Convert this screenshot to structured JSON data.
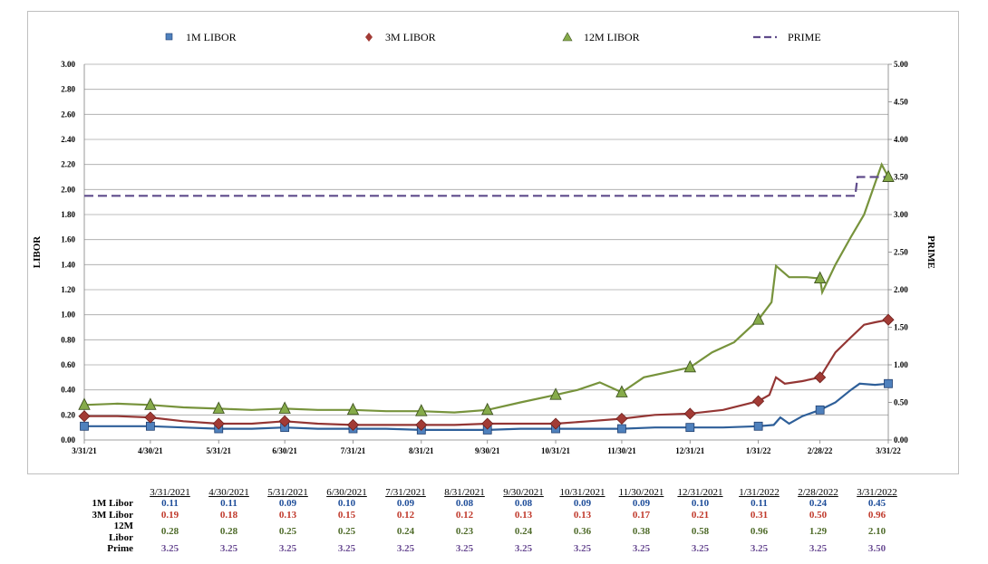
{
  "chart_data": {
    "type": "line",
    "y_left": {
      "label": "LIBOR",
      "ticks": [
        "0.00",
        "0.20",
        "0.40",
        "0.60",
        "0.80",
        "1.00",
        "1.20",
        "1.40",
        "1.60",
        "1.80",
        "2.00",
        "2.20",
        "2.40",
        "2.60",
        "2.80",
        "3.00"
      ],
      "range": [
        0,
        3
      ]
    },
    "y_right": {
      "label": "PRIME",
      "ticks": [
        "0.00",
        "0.50",
        "1.00",
        "1.50",
        "2.00",
        "2.50",
        "3.00",
        "3.50",
        "4.00",
        "4.50",
        "5.00"
      ],
      "range": [
        0,
        5
      ]
    },
    "x_ticks": [
      "3/31/21",
      "4/30/21",
      "5/31/21",
      "6/30/21",
      "7/31/21",
      "8/31/21",
      "9/30/21",
      "10/31/21",
      "11/30/21",
      "12/31/21",
      "1/31/22",
      "2/28/22",
      "3/31/22"
    ],
    "x_range": [
      "2021-03-31",
      "2022-03-31"
    ],
    "legend": {
      "placement": "top"
    },
    "series": [
      {
        "name": "1M LIBOR",
        "axis": "left",
        "color": "#4f81bd",
        "line_color": "#2e5f99",
        "marker": "square",
        "values": [
          [
            "2021-03-31",
            0.11
          ],
          [
            "2021-04-15",
            0.11
          ],
          [
            "2021-04-30",
            0.11
          ],
          [
            "2021-05-15",
            0.1
          ],
          [
            "2021-05-31",
            0.09
          ],
          [
            "2021-06-15",
            0.09
          ],
          [
            "2021-06-30",
            0.1
          ],
          [
            "2021-07-15",
            0.09
          ],
          [
            "2021-07-31",
            0.09
          ],
          [
            "2021-08-15",
            0.09
          ],
          [
            "2021-08-31",
            0.08
          ],
          [
            "2021-09-15",
            0.08
          ],
          [
            "2021-09-30",
            0.08
          ],
          [
            "2021-10-15",
            0.09
          ],
          [
            "2021-10-31",
            0.09
          ],
          [
            "2021-11-15",
            0.09
          ],
          [
            "2021-11-30",
            0.09
          ],
          [
            "2021-12-15",
            0.1
          ],
          [
            "2021-12-31",
            0.1
          ],
          [
            "2022-01-15",
            0.1
          ],
          [
            "2022-01-31",
            0.11
          ],
          [
            "2022-02-07",
            0.12
          ],
          [
            "2022-02-10",
            0.18
          ],
          [
            "2022-02-14",
            0.13
          ],
          [
            "2022-02-20",
            0.19
          ],
          [
            "2022-02-28",
            0.24
          ],
          [
            "2022-03-07",
            0.3
          ],
          [
            "2022-03-14",
            0.4
          ],
          [
            "2022-03-18",
            0.45
          ],
          [
            "2022-03-25",
            0.44
          ],
          [
            "2022-03-31",
            0.45
          ]
        ]
      },
      {
        "name": "3M LIBOR",
        "axis": "left",
        "color": "#c0504d",
        "line_color": "#943634",
        "marker": "diamond",
        "values": [
          [
            "2021-03-31",
            0.19
          ],
          [
            "2021-04-15",
            0.19
          ],
          [
            "2021-04-30",
            0.18
          ],
          [
            "2021-05-15",
            0.15
          ],
          [
            "2021-05-31",
            0.13
          ],
          [
            "2021-06-15",
            0.13
          ],
          [
            "2021-06-30",
            0.15
          ],
          [
            "2021-07-15",
            0.13
          ],
          [
            "2021-07-31",
            0.12
          ],
          [
            "2021-08-15",
            0.12
          ],
          [
            "2021-08-31",
            0.12
          ],
          [
            "2021-09-15",
            0.12
          ],
          [
            "2021-09-30",
            0.13
          ],
          [
            "2021-10-15",
            0.13
          ],
          [
            "2021-10-31",
            0.13
          ],
          [
            "2021-11-15",
            0.15
          ],
          [
            "2021-11-30",
            0.17
          ],
          [
            "2021-12-15",
            0.2
          ],
          [
            "2021-12-31",
            0.21
          ],
          [
            "2022-01-15",
            0.24
          ],
          [
            "2022-01-31",
            0.31
          ],
          [
            "2022-02-05",
            0.36
          ],
          [
            "2022-02-08",
            0.5
          ],
          [
            "2022-02-12",
            0.45
          ],
          [
            "2022-02-20",
            0.47
          ],
          [
            "2022-02-28",
            0.5
          ],
          [
            "2022-03-07",
            0.7
          ],
          [
            "2022-03-14",
            0.82
          ],
          [
            "2022-03-20",
            0.92
          ],
          [
            "2022-03-25",
            0.94
          ],
          [
            "2022-03-31",
            0.96
          ]
        ]
      },
      {
        "name": "12M LIBOR",
        "axis": "left",
        "color": "#9bbb59",
        "line_color": "#77933c",
        "marker": "triangle",
        "values": [
          [
            "2021-03-31",
            0.28
          ],
          [
            "2021-04-15",
            0.29
          ],
          [
            "2021-04-30",
            0.28
          ],
          [
            "2021-05-15",
            0.26
          ],
          [
            "2021-05-31",
            0.25
          ],
          [
            "2021-06-15",
            0.24
          ],
          [
            "2021-06-30",
            0.25
          ],
          [
            "2021-07-15",
            0.24
          ],
          [
            "2021-07-31",
            0.24
          ],
          [
            "2021-08-15",
            0.23
          ],
          [
            "2021-08-31",
            0.23
          ],
          [
            "2021-09-15",
            0.22
          ],
          [
            "2021-09-30",
            0.24
          ],
          [
            "2021-10-15",
            0.3
          ],
          [
            "2021-10-31",
            0.36
          ],
          [
            "2021-11-10",
            0.4
          ],
          [
            "2021-11-20",
            0.46
          ],
          [
            "2021-11-30",
            0.38
          ],
          [
            "2021-12-10",
            0.5
          ],
          [
            "2021-12-31",
            0.58
          ],
          [
            "2022-01-10",
            0.7
          ],
          [
            "2022-01-20",
            0.78
          ],
          [
            "2022-01-31",
            0.96
          ],
          [
            "2022-02-06",
            1.1
          ],
          [
            "2022-02-08",
            1.39
          ],
          [
            "2022-02-14",
            1.3
          ],
          [
            "2022-02-22",
            1.3
          ],
          [
            "2022-02-28",
            1.29
          ],
          [
            "2022-03-01",
            1.18
          ],
          [
            "2022-03-07",
            1.4
          ],
          [
            "2022-03-14",
            1.62
          ],
          [
            "2022-03-20",
            1.8
          ],
          [
            "2022-03-25",
            2.05
          ],
          [
            "2022-03-28",
            2.2
          ],
          [
            "2022-03-31",
            2.1
          ]
        ]
      },
      {
        "name": "PRIME",
        "axis": "right",
        "color": "#5f4b8b",
        "line_color": "#5f4b8b",
        "marker": "none",
        "dashed": true,
        "values": [
          [
            "2021-03-31",
            3.25
          ],
          [
            "2022-03-16",
            3.25
          ],
          [
            "2022-03-17",
            3.5
          ],
          [
            "2022-03-31",
            3.5
          ]
        ]
      }
    ]
  },
  "table": {
    "headers": [
      "3/31/2021",
      "4/30/2021",
      "5/31/2021",
      "6/30/2021",
      "7/31/2021",
      "8/31/2021",
      "9/30/2021",
      "10/31/2021",
      "11/30/2021",
      "12/31/2021",
      "1/31/2022",
      "2/28/2022",
      "3/31/2022"
    ],
    "rows": [
      {
        "label": "1M Libor",
        "color": "#1f4e9a",
        "values": [
          "0.11",
          "0.11",
          "0.09",
          "0.10",
          "0.09",
          "0.08",
          "0.08",
          "0.09",
          "0.09",
          "0.10",
          "0.11",
          "0.24",
          "0.45"
        ]
      },
      {
        "label": "3M Libor",
        "color": "#c0392b",
        "values": [
          "0.19",
          "0.18",
          "0.13",
          "0.15",
          "0.12",
          "0.12",
          "0.13",
          "0.13",
          "0.17",
          "0.21",
          "0.31",
          "0.50",
          "0.96"
        ]
      },
      {
        "label": "12M Libor",
        "color": "#4f6b2a",
        "values": [
          "0.28",
          "0.28",
          "0.25",
          "0.25",
          "0.24",
          "0.23",
          "0.24",
          "0.36",
          "0.38",
          "0.58",
          "0.96",
          "1.29",
          "2.10"
        ]
      },
      {
        "label": "Prime",
        "color": "#6a4c93",
        "values": [
          "3.25",
          "3.25",
          "3.25",
          "3.25",
          "3.25",
          "3.25",
          "3.25",
          "3.25",
          "3.25",
          "3.25",
          "3.25",
          "3.25",
          "3.50"
        ]
      }
    ]
  }
}
